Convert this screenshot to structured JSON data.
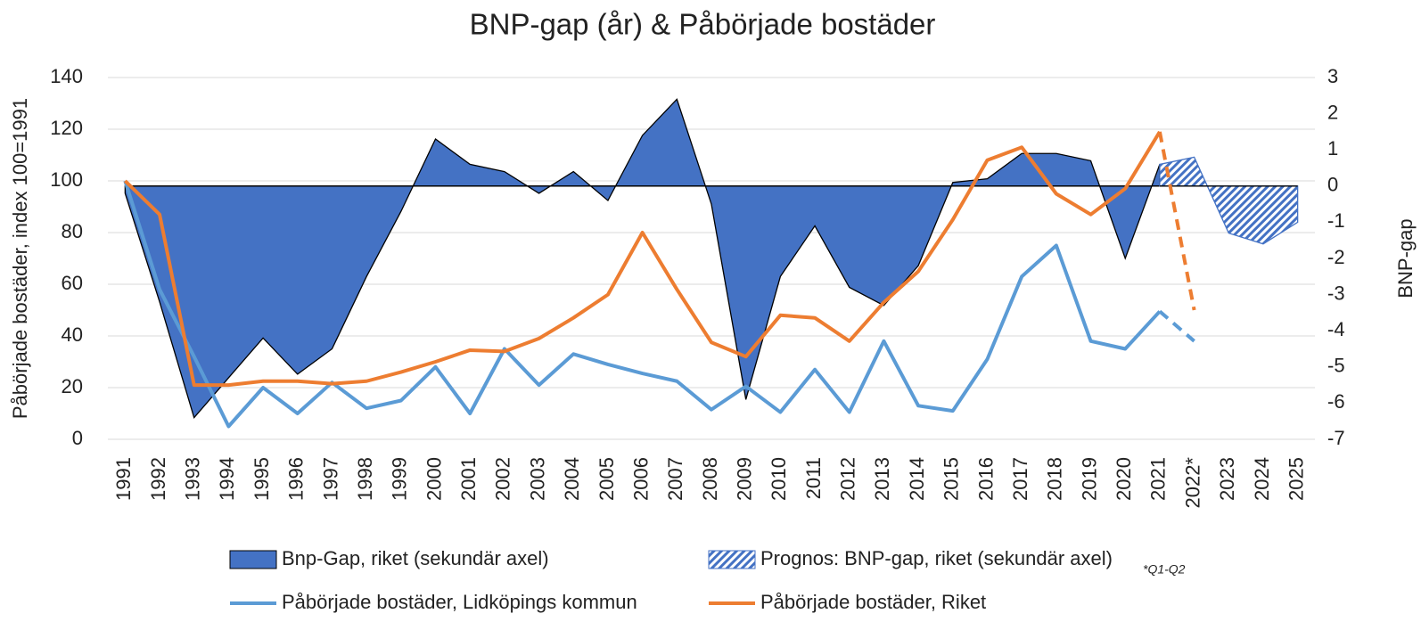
{
  "chart_data": {
    "type": "combo",
    "title": "BNP-gap (år) & Påbörjade bostäder",
    "y_label": "Påbörjade bostäder, index 100=1991",
    "y2_label": "BNP-gap",
    "annotation": "*Q1-Q2",
    "categories": [
      "1991",
      "1992",
      "1993",
      "1994",
      "1995",
      "1996",
      "1997",
      "1998",
      "1999",
      "2000",
      "2001",
      "2002",
      "2003",
      "2004",
      "2005",
      "2006",
      "2007",
      "2008",
      "2009",
      "2010",
      "2011",
      "2012",
      "2013",
      "2014",
      "2015",
      "2016",
      "2017",
      "2018",
      "2019",
      "2020",
      "2021",
      "2022*",
      "2023",
      "2024",
      "2025"
    ],
    "ylim": [
      0,
      140
    ],
    "yticks": [
      0,
      20,
      40,
      60,
      80,
      100,
      120,
      140
    ],
    "y2lim": [
      -7,
      3
    ],
    "y2ticks": [
      -7,
      -6,
      -5,
      -4,
      -3,
      -2,
      -1,
      0,
      1,
      2,
      3
    ],
    "grid": true,
    "series": [
      {
        "name": "Bnp-Gap, riket (sekundär axel)",
        "type": "area",
        "axis": "y2",
        "color": "#4472c4",
        "values": [
          -0.2,
          -3.2,
          -6.4,
          -5.3,
          -4.2,
          -5.2,
          -4.5,
          -2.5,
          -0.7,
          1.3,
          0.6,
          0.4,
          -0.2,
          0.4,
          -0.4,
          1.4,
          2.4,
          -0.5,
          -5.9,
          -2.5,
          -1.1,
          -2.8,
          -3.3,
          -2.2,
          0.1,
          0.2,
          0.9,
          0.9,
          0.7,
          -2.0,
          0.6,
          null,
          null,
          null,
          null
        ]
      },
      {
        "name": "Prognos: BNP-gap, riket (sekundär axel)",
        "type": "area",
        "axis": "y2",
        "color": "#4472c4",
        "hatched": true,
        "values": [
          null,
          null,
          null,
          null,
          null,
          null,
          null,
          null,
          null,
          null,
          null,
          null,
          null,
          null,
          null,
          null,
          null,
          null,
          null,
          null,
          null,
          null,
          null,
          null,
          null,
          null,
          null,
          null,
          null,
          null,
          0.6,
          0.8,
          -1.3,
          -1.6,
          -1.0
        ]
      },
      {
        "name": "Påbörjade bostäder, Lidköpings kommun",
        "type": "line",
        "color": "#5b9bd5",
        "dashed_last_segment": true,
        "values": [
          100,
          58,
          32,
          5,
          20,
          10,
          22,
          12,
          15,
          28,
          10,
          35,
          21,
          33,
          29,
          25.5,
          22.5,
          11.5,
          20.5,
          10.5,
          27,
          10.5,
          38,
          13,
          11,
          31,
          63,
          75,
          38,
          35,
          49.5,
          38,
          null,
          null,
          null
        ]
      },
      {
        "name": "Påbörjade bostäder, Riket",
        "type": "line",
        "color": "#ed7d31",
        "dashed_last_segment": true,
        "values": [
          100,
          87,
          21,
          21,
          22.5,
          22.5,
          21.5,
          22.5,
          26,
          30,
          34.5,
          34,
          39,
          47,
          56,
          80,
          58,
          37.5,
          32,
          48,
          47,
          38,
          53,
          65,
          85,
          108,
          113,
          95,
          87,
          97,
          119,
          50,
          null,
          null,
          null
        ]
      }
    ]
  }
}
